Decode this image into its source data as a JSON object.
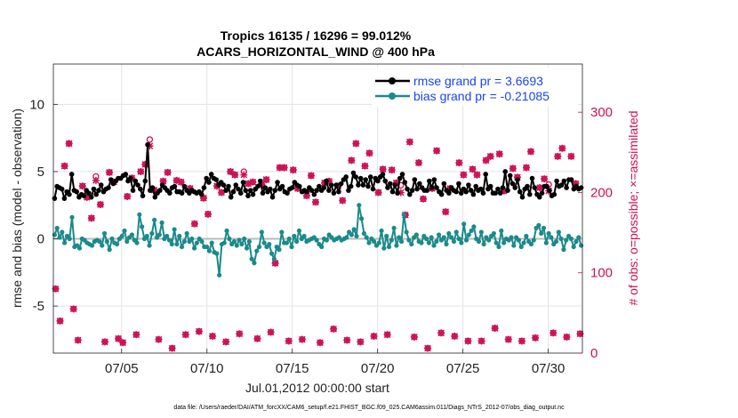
{
  "chart_data": {
    "type": "line",
    "title_line1": "Tropics 16135 / 16296 = 99.012%",
    "title_line2": "ACARS_HORIZONTAL_WIND @ 400 hPa",
    "ylabel_left": "rmse and bias (model - observation)",
    "ylabel_right": "# of obs: o=possible; ×=assimilated",
    "xlabel": "Jul.01,2012 00:00:00 start",
    "footnote": "data file: /Users/raeder/DAI/ATM_forcXX/CAM6_setup/f.e21.FHIST_BGC.f09_025.CAM6assim.011/Diags_NTrS_2012-07/obs_diag_output.nc",
    "xlim": [
      1,
      32
    ],
    "ylim_left": [
      -8.5,
      13
    ],
    "ylim_right": [
      0,
      360
    ],
    "x_ticks": [
      5,
      10,
      15,
      20,
      25,
      30
    ],
    "x_tick_labels": [
      "07/05",
      "07/10",
      "07/15",
      "07/20",
      "07/25",
      "07/30"
    ],
    "y_ticks_left": [
      -5,
      0,
      5,
      10
    ],
    "y_ticks_right": [
      0,
      100,
      200,
      300
    ],
    "legend_position": "top-right",
    "series": [
      {
        "name": "rmse grand pr = 3.6693",
        "color": "#000000",
        "values": [
          3.0,
          3.9,
          3.8,
          3.7,
          3.0,
          3.5,
          3.3,
          4.8,
          3.6,
          3.5,
          3.1,
          3.3,
          3.2,
          3.6,
          3.4,
          3.1,
          3.7,
          3.3,
          3.6,
          4.0,
          3.5,
          3.7,
          3.8,
          4.4,
          4.1,
          4.3,
          4.5,
          4.5,
          4.7,
          4.8,
          4.3,
          4.5,
          3.6,
          4.3,
          4.0,
          3.7,
          3.2,
          4.3,
          7.0,
          3.6,
          3.8,
          3.1,
          3.4,
          3.6,
          4.0,
          3.8,
          3.6,
          3.4,
          3.8,
          3.9,
          3.5,
          3.5,
          3.4,
          3.9,
          3.6,
          3.4,
          3.6,
          3.5,
          3.4,
          3.5,
          3.3,
          3.8,
          4.5,
          4.2,
          4.8,
          4.5,
          4.4,
          4.0,
          4.2,
          4.0,
          3.6,
          3.9,
          3.1,
          3.5,
          4.0,
          3.7,
          3.4,
          4.2,
          3.6,
          3.2,
          3.6,
          3.3,
          3.7,
          3.9,
          4.3,
          3.4,
          3.8,
          3.5,
          3.7,
          3.1,
          3.6,
          4.2,
          3.7,
          3.9,
          3.5,
          3.4,
          3.7,
          3.8,
          4.2,
          4.0,
          3.9,
          3.5,
          3.6,
          3.5,
          3.8,
          3.6,
          3.3,
          3.6,
          3.9,
          3.6,
          3.8,
          4.3,
          3.6,
          4.0,
          3.4,
          4.0,
          3.5,
          4.1,
          4.4,
          4.6,
          3.6,
          3.9,
          4.9,
          4.6,
          4.0,
          4.5,
          4.0,
          4.4,
          3.9,
          4.6,
          3.7,
          4.5,
          4.3,
          4.6,
          4.8,
          4.3,
          3.8,
          4.1,
          3.5,
          4.0,
          3.4,
          4.5,
          4.8,
          4.2,
          3.7,
          3.3,
          3.6,
          4.4,
          3.7,
          4.1,
          3.8,
          3.6,
          3.6,
          4.3,
          3.8,
          4.4,
          3.8,
          3.5,
          3.3,
          4.1,
          3.6,
          3.4,
          3.8,
          3.6,
          3.5,
          4.1,
          3.4,
          3.7,
          3.5,
          4.0,
          3.6,
          3.3,
          3.9,
          3.6,
          3.7,
          3.4,
          4.8,
          3.7,
          3.9,
          3.4,
          3.4,
          3.7,
          3.4,
          3.8,
          5.0,
          3.6,
          4.7,
          4.1,
          3.8,
          4.4,
          3.5,
          3.1,
          3.7,
          3.9,
          3.3,
          4.5,
          3.8,
          3.3,
          3.1,
          3.4,
          3.9,
          3.9,
          3.6,
          3.2,
          3.3,
          4.3,
          3.9,
          4.0,
          4.3,
          3.8,
          4.4,
          4.4,
          3.7,
          3.9,
          3.7,
          3.8
        ]
      },
      {
        "name": "bias grand pr = -0.21085",
        "color": "#1a8a8a",
        "values": [
          0.3,
          0.8,
          0.1,
          0.5,
          -0.3,
          0.2,
          0.0,
          1.6,
          -0.6,
          -0.5,
          -0.7,
          0.0,
          -0.1,
          -0.3,
          -0.4,
          -0.5,
          -0.2,
          -0.1,
          -0.2,
          -0.5,
          0.4,
          -0.2,
          -0.8,
          0.0,
          -0.3,
          -0.4,
          0.0,
          0.2,
          0.6,
          -0.2,
          0.1,
          0.3,
          -0.1,
          -0.3,
          1.8,
          0.9,
          0.0,
          0.2,
          -0.5,
          0.4,
          1.4,
          0.1,
          0.3,
          1.2,
          0.0,
          0.2,
          -0.1,
          -0.4,
          0.7,
          -0.4,
          0.2,
          -0.6,
          -0.2,
          0.4,
          -0.2,
          0.0,
          -0.7,
          -0.3,
          0.0,
          -0.2,
          -0.6,
          -0.6,
          -0.9,
          -0.3,
          -1.0,
          -1.1,
          -2.7,
          -0.4,
          -0.3,
          0.6,
          0.0,
          -0.4,
          -0.2,
          -0.5,
          -0.1,
          -0.4,
          0.0,
          -0.7,
          -0.2,
          -1.5,
          -1.8,
          -0.9,
          -0.6,
          0.5,
          -0.3,
          -0.6,
          -0.4,
          -1.1,
          -1.5,
          -0.6,
          -0.8,
          0.5,
          -0.3,
          -0.3,
          0.0,
          -0.6,
          0.2,
          -0.2,
          0.6,
          0.0,
          0.2,
          -0.2,
          -0.1,
          0.0,
          0.1,
          -0.1,
          -0.4,
          -0.6,
          0.0,
          -0.1,
          0.3,
          0.1,
          -0.1,
          0.0,
          0.1,
          -0.1,
          0.0,
          0.1,
          0.5,
          0.3,
          0.7,
          0.2,
          2.5,
          1.5,
          0.4,
          0.1,
          -0.3,
          0.0,
          -0.2,
          -0.5,
          -0.3,
          0.6,
          -0.7,
          0.2,
          -0.6,
          -0.1,
          0.8,
          -0.5,
          0.1,
          -0.2,
          1.8,
          0.5,
          -0.1,
          -0.4,
          0.1,
          0.3,
          -0.2,
          -0.3,
          0.2,
          0.0,
          -0.3,
          0.1,
          -0.5,
          -0.2,
          0.3,
          -0.1,
          0.1,
          -0.4,
          0.4,
          0.1,
          -0.2,
          0.5,
          0.0,
          -0.3,
          1.1,
          -0.1,
          0.3,
          0.6,
          0.9,
          0.0,
          -0.2,
          0.5,
          -0.4,
          0.1,
          -0.1,
          0.2,
          0.4,
          -0.3,
          -0.6,
          0.6,
          -0.3,
          0.0,
          -0.1,
          0.1,
          -0.5,
          0.1,
          -0.1,
          -0.6,
          -0.3,
          0.2,
          -0.2,
          -0.4,
          -0.1,
          0.8,
          1.0,
          0.4,
          0.8,
          -0.3,
          0.4,
          0.1,
          -0.4,
          -0.2,
          0.5,
          0.0,
          -0.8,
          -0.1,
          0.2,
          0.0,
          -0.6,
          -0.2,
          0.1,
          -0.5
        ]
      }
    ],
    "obs_possible": {
      "color": "#cc1155",
      "marker": "o",
      "values": [
        80,
        40,
        233,
        261,
        55,
        16,
        208,
        194,
        168,
        220,
        185,
        14,
        225,
        213,
        18,
        13,
        195,
        218,
        23,
        226,
        235,
        266,
        203,
        17,
        214,
        225,
        6,
        215,
        213,
        23,
        205,
        161,
        27,
        193,
        173,
        21,
        208,
        200,
        14,
        226,
        222,
        24,
        226,
        211,
        213,
        18,
        210,
        216,
        26,
        112,
        231,
        231,
        15,
        228,
        205,
        17,
        196,
        221,
        188,
        13,
        212,
        214,
        30,
        208,
        190,
        16,
        240,
        261,
        14,
        233,
        249,
        21,
        200,
        229,
        23,
        228,
        212,
        209,
        172,
        263,
        20,
        237,
        192,
        6,
        205,
        252,
        25,
        176,
        205,
        21,
        237,
        222,
        15,
        229,
        222,
        15,
        240,
        245,
        31,
        248,
        202,
        17,
        230,
        219,
        15,
        231,
        251,
        19,
        206,
        217,
        210,
        25,
        245,
        255,
        20,
        245,
        211,
        24
      ]
    },
    "obs_assimilated": {
      "color": "#cc1155",
      "marker": "x",
      "values": [
        80,
        40,
        233,
        261,
        55,
        16,
        208,
        194,
        168,
        215,
        185,
        14,
        225,
        213,
        18,
        13,
        195,
        218,
        23,
        226,
        235,
        258,
        203,
        17,
        214,
        225,
        6,
        215,
        213,
        23,
        205,
        161,
        27,
        193,
        173,
        21,
        208,
        200,
        14,
        226,
        222,
        24,
        222,
        211,
        213,
        18,
        210,
        216,
        26,
        112,
        231,
        231,
        15,
        228,
        205,
        17,
        196,
        221,
        188,
        13,
        212,
        214,
        30,
        208,
        190,
        16,
        240,
        261,
        14,
        233,
        249,
        21,
        200,
        229,
        23,
        228,
        212,
        200,
        172,
        263,
        20,
        237,
        192,
        6,
        205,
        252,
        25,
        176,
        205,
        21,
        237,
        222,
        15,
        229,
        222,
        15,
        240,
        245,
        31,
        248,
        202,
        17,
        230,
        219,
        15,
        231,
        251,
        19,
        206,
        217,
        202,
        25,
        245,
        255,
        20,
        245,
        211,
        24
      ]
    }
  }
}
